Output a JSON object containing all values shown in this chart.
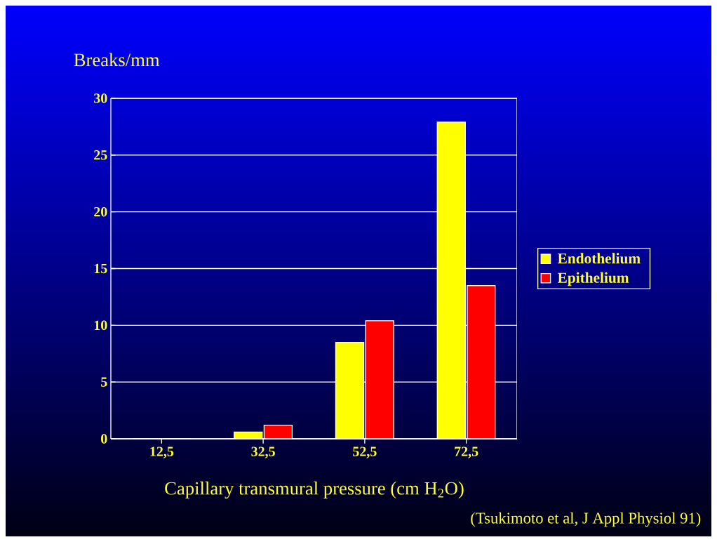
{
  "chart_data": {
    "type": "bar",
    "ylabel": "Breaks/mm",
    "xlabel": "Capillary transmural pressure (cm H$_{2}$O)",
    "annotations": [
      "(Tsukimoto et al, J Appl Physiol 91)"
    ],
    "categories": [
      "12,5",
      "32,5",
      "52,5",
      "72,5"
    ],
    "series": [
      {
        "name": "Endothelium",
        "color": "#ffff00",
        "values": [
          0,
          0.6,
          8.5,
          27.9
        ]
      },
      {
        "name": "Epithelium",
        "color": "#ff0000",
        "values": [
          0,
          1.2,
          10.4,
          13.5
        ]
      }
    ],
    "ylim": [
      0,
      30
    ],
    "yticks": [
      0,
      5,
      10,
      15,
      20,
      25,
      30
    ],
    "grid": "y",
    "legend": "right"
  }
}
